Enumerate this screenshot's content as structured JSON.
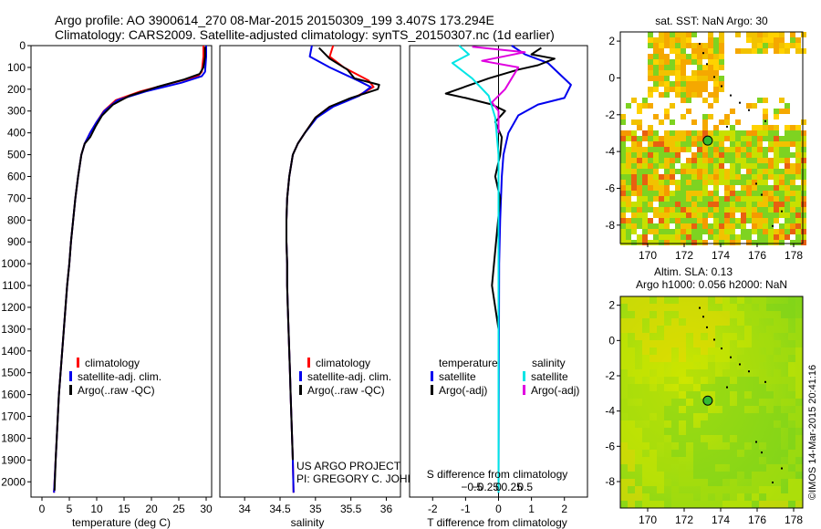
{
  "header": {
    "line1": "Argo profile: AO 3900614_270 08-Mar-2015 20150309_199 3.407S 173.294E",
    "line2": "Climatology: CARS2009. Satellite-adjusted climatology: synTS_20150307.nc (1d earlier)"
  },
  "project": {
    "line1": "US ARGO PROJECT",
    "line2": "PI: GREGORY C. JOHNSON"
  },
  "imos_stamp": "©IMOS 14-Mar-2015 20:41:16",
  "colors": {
    "climatology": "#ff0000",
    "satellite": "#0000ee",
    "argo": "#000000",
    "sal_satellite": "#00e5e5",
    "sal_argo": "#e000e0",
    "float_marker": "#33bb33"
  },
  "chart_data": [
    {
      "id": "temperature",
      "type": "line",
      "xlabel": "temperature (deg C)",
      "ylabel": "",
      "xlim": [
        -2,
        31
      ],
      "ylim": [
        2070,
        0
      ],
      "xticks": [
        0,
        5,
        10,
        15,
        20,
        25,
        30
      ],
      "yticks": [
        0,
        100,
        200,
        300,
        400,
        500,
        600,
        700,
        800,
        900,
        1000,
        1100,
        1200,
        1300,
        1400,
        1500,
        1600,
        1700,
        1800,
        1900,
        2000
      ],
      "legend_position": "lower-center",
      "legend": [
        "climatology",
        "satellite-adj. clim.",
        "Argo(..raw -QC)"
      ],
      "series": [
        {
          "name": "climatology",
          "color": "#ff0000",
          "x": [
            29.5,
            29.5,
            29.2,
            28.5,
            24,
            18,
            13.5,
            11.3,
            10,
            8.8,
            7.8,
            7.2,
            6.6,
            6.1,
            5.7,
            5.3,
            5.0,
            4.6,
            4.3,
            4.0,
            3.7,
            3.4,
            3.1,
            2.9,
            2.7,
            2.5,
            2.3,
            2.2
          ],
          "y": [
            0,
            50,
            120,
            140,
            170,
            210,
            250,
            300,
            350,
            400,
            450,
            500,
            600,
            700,
            800,
            900,
            1000,
            1100,
            1200,
            1300,
            1400,
            1500,
            1600,
            1700,
            1800,
            1900,
            2000,
            2050
          ]
        },
        {
          "name": "satellite-adj. clim.",
          "color": "#0000ee",
          "x": [
            30.0,
            30.0,
            29.8,
            29.2,
            25.5,
            19,
            13.8,
            11.4,
            10,
            8.8,
            7.8,
            7.2,
            6.6,
            6.1,
            5.7,
            5.3,
            5.0,
            4.6,
            4.3,
            4.0,
            3.7,
            3.4,
            3.1,
            2.9,
            2.7,
            2.5,
            2.3,
            2.2
          ],
          "y": [
            0,
            50,
            120,
            140,
            170,
            210,
            250,
            300,
            350,
            400,
            450,
            500,
            600,
            700,
            800,
            900,
            1000,
            1100,
            1200,
            1300,
            1400,
            1500,
            1600,
            1700,
            1800,
            1900,
            2000,
            2050
          ]
        },
        {
          "name": "Argo(..raw -QC)",
          "color": "#000000",
          "x": [
            29.8,
            29.8,
            29.5,
            28.8,
            26,
            21,
            16,
            13,
            11,
            9.8,
            8.8,
            7.8,
            7.2,
            6.6,
            6.1,
            5.7,
            5.3,
            5.0,
            4.6,
            4.3,
            4.0,
            3.7,
            3.4,
            3.1,
            2.9,
            2.7,
            2.5,
            2.3
          ],
          "y": [
            5,
            50,
            100,
            130,
            155,
            190,
            230,
            270,
            320,
            370,
            420,
            450,
            500,
            600,
            700,
            800,
            900,
            1000,
            1100,
            1200,
            1300,
            1400,
            1500,
            1600,
            1700,
            1800,
            1900,
            2040
          ]
        }
      ]
    },
    {
      "id": "salinity",
      "type": "line",
      "xlabel": "salinity",
      "ylabel": "",
      "xlim": [
        33.65,
        36.2
      ],
      "ylim": [
        2070,
        0
      ],
      "xticks": [
        34,
        34.5,
        35,
        35.5,
        36
      ],
      "legend_position": "lower-center",
      "legend": [
        "climatology",
        "satellite-adj. clim.",
        "Argo(..raw -QC)"
      ],
      "series": [
        {
          "name": "climatology",
          "color": "#ff0000",
          "x": [
            35.25,
            35.2,
            35.4,
            35.75,
            35.82,
            35.6,
            35.2,
            35.0,
            34.85,
            34.75,
            34.68,
            34.63,
            34.6,
            34.59,
            34.59,
            34.6,
            34.6,
            34.61,
            34.62,
            34.63,
            34.64,
            34.65,
            34.66,
            34.67,
            34.68,
            34.69
          ],
          "y": [
            0,
            50,
            100,
            160,
            190,
            230,
            280,
            330,
            400,
            450,
            500,
            600,
            700,
            800,
            900,
            1000,
            1100,
            1200,
            1300,
            1400,
            1500,
            1600,
            1700,
            1800,
            1900,
            2050
          ]
        },
        {
          "name": "satellite-adj. clim.",
          "color": "#0000ee",
          "x": [
            34.95,
            34.92,
            35.2,
            35.6,
            35.78,
            35.62,
            35.25,
            35.02,
            34.85,
            34.75,
            34.68,
            34.63,
            34.6,
            34.59,
            34.59,
            34.6,
            34.6,
            34.61,
            34.62,
            34.63,
            34.64,
            34.65,
            34.66,
            34.67,
            34.68,
            34.69
          ],
          "y": [
            0,
            50,
            100,
            160,
            190,
            230,
            280,
            330,
            400,
            450,
            500,
            600,
            700,
            800,
            900,
            1000,
            1100,
            1200,
            1300,
            1400,
            1500,
            1600,
            1700,
            1800,
            1900,
            2050
          ]
        },
        {
          "name": "Argo(..raw -QC)",
          "color": "#000000",
          "x": [
            35.05,
            35.2,
            35.45,
            35.55,
            35.9,
            35.88,
            35.5,
            35.2,
            35.0,
            34.85,
            34.75,
            34.68,
            34.63,
            34.6,
            34.59,
            34.59,
            34.6,
            34.6,
            34.61,
            34.62,
            34.63,
            34.64,
            34.65,
            34.66,
            34.67,
            34.68
          ],
          "y": [
            10,
            60,
            110,
            150,
            180,
            200,
            240,
            280,
            330,
            400,
            450,
            500,
            600,
            700,
            800,
            900,
            1000,
            1100,
            1200,
            1300,
            1400,
            1500,
            1600,
            1700,
            1800,
            1900
          ]
        }
      ]
    },
    {
      "id": "differences",
      "type": "line",
      "xlabel": "T difference from climatology",
      "x2label": "S difference from climatology",
      "xlim": [
        -2.7,
        2.7
      ],
      "ylim": [
        2070,
        0
      ],
      "xticks": [
        -2,
        -1,
        0,
        1,
        2
      ],
      "x2ticks": [
        -0.5,
        -0.25,
        0,
        0.25,
        0.5
      ],
      "x2tick_labels": [
        "−0.5",
        "−0.25",
        "0",
        "0.25",
        "0.5"
      ],
      "legend_position": "lower-center",
      "legend_titles": [
        "temperature",
        "salinity"
      ],
      "legend": [
        "satellite",
        "Argo(-adj)",
        "satellite",
        "Argo(-adj)"
      ],
      "series": [
        {
          "name": "temperature satellite",
          "color": "#0000ee",
          "x": [
            0.4,
            0.8,
            1.5,
            2.2,
            2.0,
            1.2,
            0.6,
            0.3,
            0.15,
            0.1,
            0.05,
            0.02,
            0
          ],
          "y": [
            0,
            40,
            80,
            180,
            240,
            270,
            320,
            400,
            500,
            600,
            800,
            1000,
            2050
          ]
        },
        {
          "name": "temperature Argo(-adj)",
          "color": "#000000",
          "x": [
            1.3,
            1.0,
            1.7,
            1.2,
            0.6,
            -0.3,
            -1.6,
            -1.0,
            -0.2,
            0.2,
            -0.1,
            0.1,
            0.05,
            -0.1,
            0.05,
            -0.2,
            -0.15,
            -0.1,
            0,
            0,
            0
          ],
          "y": [
            10,
            40,
            60,
            90,
            110,
            150,
            220,
            240,
            270,
            300,
            350,
            420,
            500,
            600,
            700,
            1100,
            1150,
            1200,
            1300,
            1400,
            1500
          ]
        },
        {
          "name": "salinity satellite",
          "color": "#00e5e5",
          "x": [
            -1.2,
            -0.9,
            -1.4,
            -0.8,
            -0.3,
            -0.1,
            0,
            0,
            0,
            0,
            0
          ],
          "y": [
            0,
            40,
            80,
            150,
            230,
            330,
            500,
            800,
            1000,
            1500,
            2050
          ]
        },
        {
          "name": "salinity Argo(-adj)",
          "color": "#e000e0",
          "x": [
            -0.8,
            0.8,
            -0.5,
            0.6,
            0.2,
            -0.2,
            0,
            0,
            0
          ],
          "y": [
            5,
            30,
            70,
            100,
            200,
            260,
            300,
            350,
            400
          ]
        }
      ]
    },
    {
      "id": "sst_map",
      "type": "heatmap",
      "title": "sat. SST: NaN Argo: 30",
      "xlim": [
        168.5,
        178.5
      ],
      "ylim": [
        -9,
        2.5
      ],
      "xticks": [
        170,
        172,
        174,
        176,
        178
      ],
      "yticks": [
        2,
        0,
        -2,
        -4,
        -6,
        -8
      ],
      "marker": {
        "lon": 173.294,
        "lat": -3.407
      }
    },
    {
      "id": "sla_map",
      "type": "heatmap",
      "title": "Altim. SLA: 0.13",
      "subtitle": "Argo h1000: 0.056 h2000: NaN",
      "xlim": [
        168.5,
        178.5
      ],
      "ylim": [
        -9.5,
        2.5
      ],
      "xticks": [
        170,
        172,
        174,
        176,
        178
      ],
      "yticks": [
        2,
        0,
        -2,
        -4,
        -6,
        -8
      ],
      "marker": {
        "lon": 173.294,
        "lat": -3.407
      }
    }
  ]
}
